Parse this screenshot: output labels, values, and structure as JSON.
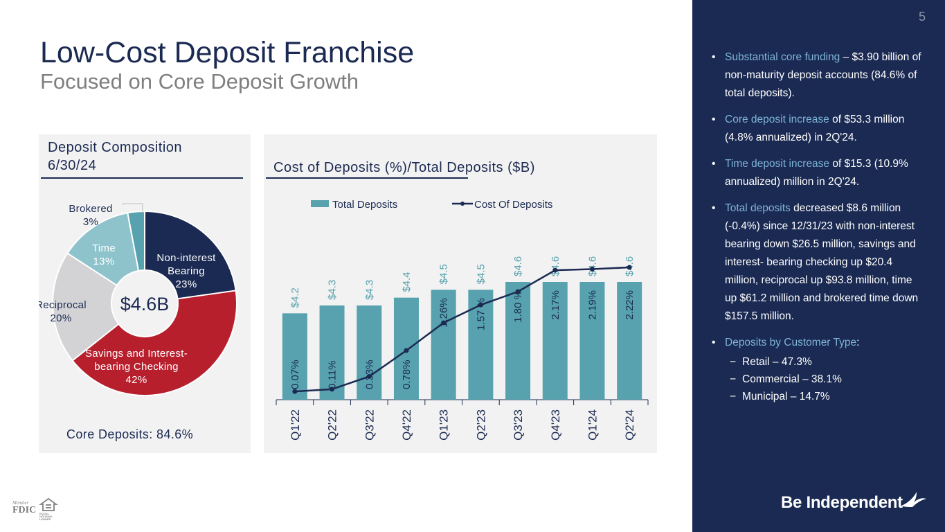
{
  "header": {
    "title": "Low-Cost Deposit Franchise",
    "subtitle": "Focused on Core Deposit Growth",
    "page_number": "5"
  },
  "left_panel": {
    "heading_line1": "Deposit Composition",
    "heading_line2": "6/30/24",
    "center_label": "$4.6B",
    "core_deposits": "Core Deposits: 84.6%"
  },
  "right_panel": {
    "heading": "Cost of Deposits (%)/Total Deposits ($B)"
  },
  "chart_data": [
    {
      "type": "pie",
      "donut": true,
      "total_label": "$4.6B",
      "slices": [
        {
          "label": "Non-interest Bearing",
          "value": 23,
          "value_label": "23%",
          "color": "#1b2a52"
        },
        {
          "label": "Savings and Interest-bearing Checking",
          "value": 42,
          "value_label": "42%",
          "color": "#b81f2d"
        },
        {
          "label": "Reciprocal",
          "value": 20,
          "value_label": "20%",
          "color": "#d3d3d5"
        },
        {
          "label": "Time",
          "value": 13,
          "value_label": "13%",
          "color": "#8ec3cc"
        },
        {
          "label": "Brokered",
          "value": 3,
          "value_label": "3%",
          "color": "#57a2ae"
        }
      ]
    },
    {
      "type": "bar",
      "categories": [
        "Q1'22",
        "Q2'22",
        "Q3'22",
        "Q4'22",
        "Q1'23",
        "Q2'23",
        "Q3'23",
        "Q4'23",
        "Q1'24",
        "Q2'24"
      ],
      "legend_position": "top",
      "series": [
        {
          "name": "Total Deposits",
          "kind": "bar",
          "color": "#57a2ae",
          "values": [
            4.2,
            4.3,
            4.3,
            4.4,
            4.5,
            4.5,
            4.6,
            4.6,
            4.6,
            4.6
          ],
          "labels": [
            "$4.2",
            "$4.3",
            "$4.3",
            "$4.4",
            "$4.5",
            "$4.5",
            "$4.6",
            "$4.6",
            "$4.6",
            "$4.6"
          ]
        },
        {
          "name": "Cost Of Deposits",
          "kind": "line",
          "color": "#1b2a52",
          "values": [
            0.07,
            0.11,
            0.33,
            0.78,
            1.26,
            1.57,
            1.8,
            2.17,
            2.19,
            2.22
          ],
          "labels": [
            "0.07%",
            "0.11%",
            "0.33%",
            "0.78%",
            "1.26%",
            "1.57 %",
            "1.80 %",
            "2.17%",
            "2.19%",
            "2.22%"
          ]
        }
      ]
    }
  ],
  "sidebar": {
    "bullets": [
      {
        "highlight": "Substantial core funding",
        "text": " – $3.90 billion of non-maturity deposit accounts (84.6% of total deposits)."
      },
      {
        "highlight": "Core deposit increase",
        "text": " of $53.3 million (4.8% annualized) in 2Q'24."
      },
      {
        "highlight": "Time deposit increase",
        "text": " of $15.3 (10.9% annualized) million in 2Q'24."
      },
      {
        "highlight": "Total deposits",
        "text": " decreased $8.6 million (-0.4%) since 12/31/23 with non-interest bearing down $26.5 million, savings and interest- bearing checking up $20.4 million, reciprocal up $93.8 million, time up $61.2 million and brokered time down $157.5 million."
      },
      {
        "highlight": "Deposits by Customer Type",
        "text": ":"
      }
    ],
    "sub_bullets": [
      "Retail – 47.3%",
      "Commercial – 38.1%",
      "Municipal – 14.7%"
    ],
    "bullet_marker": "•",
    "dash_marker": "−",
    "logo_text": "Be Independent"
  },
  "footer": {
    "fdic_member": "Member",
    "fdic_text": "FDIC",
    "lender_text": "EQUAL HOUSING LENDER"
  },
  "colors": {
    "navy": "#1b2a52",
    "teal": "#57a2ae",
    "red": "#b81f2d",
    "highlight": "#7db4d6"
  }
}
